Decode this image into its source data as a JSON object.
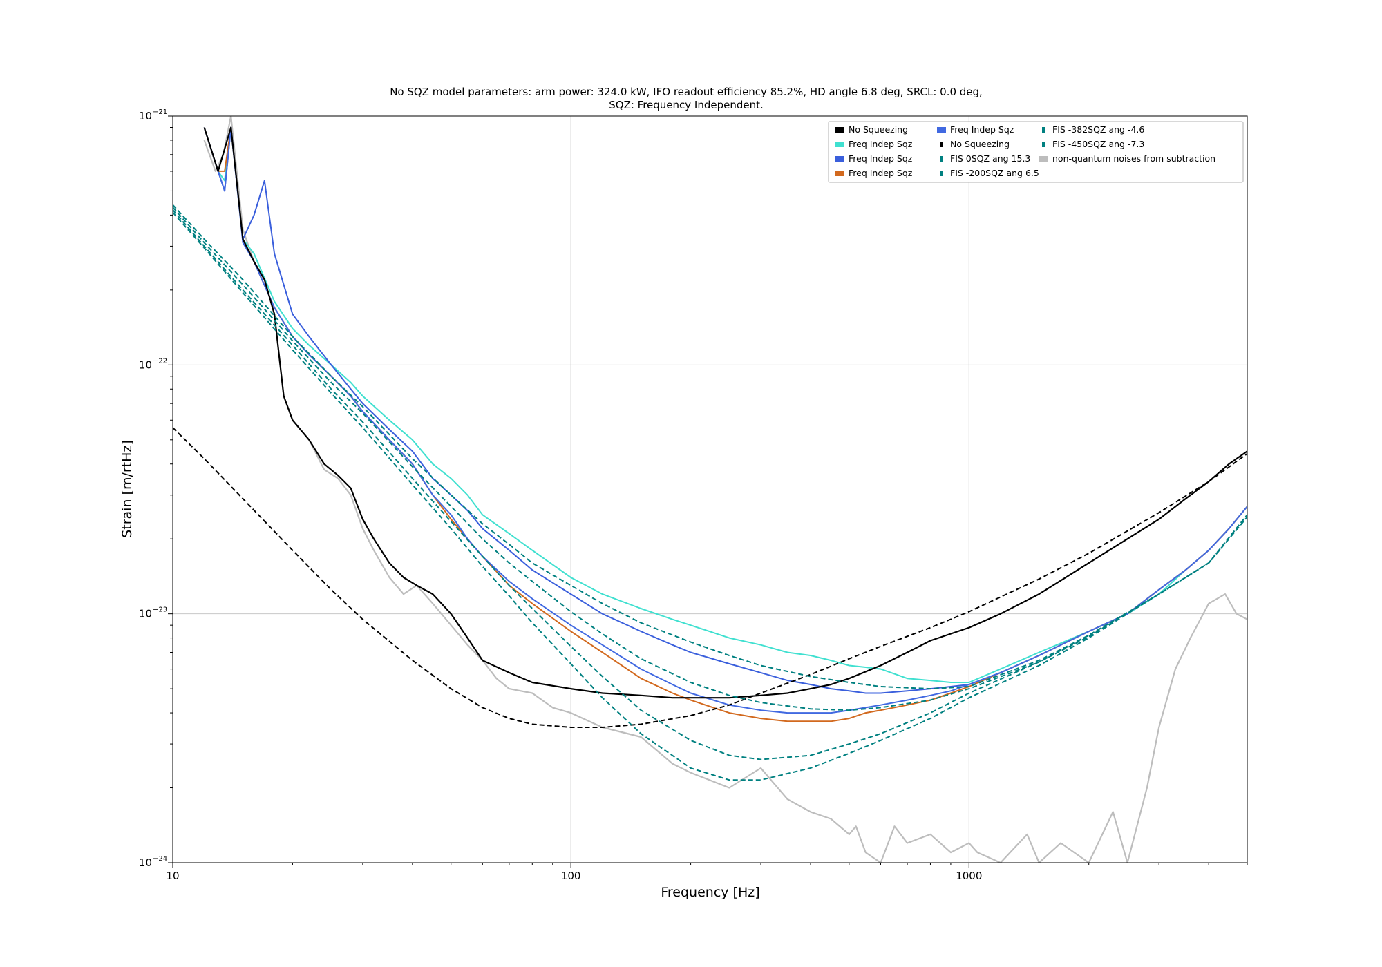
{
  "chart_data": {
    "type": "line",
    "title": "No SQZ model parameters: arm power: 324.0 kW, IFO readout efficiency 85.2%, HD angle 6.8 deg, SRCL: 0.0 deg,",
    "subtitle": "SQZ: Frequency Independent.",
    "xlabel": "Frequency [Hz]",
    "ylabel": "Strain [m/rtHz]",
    "xscale": "log",
    "yscale": "log",
    "xlim": [
      10,
      5000
    ],
    "ylim": [
      1e-24,
      1e-21
    ],
    "grid": true,
    "legend_position": "top-right",
    "x_tick_labels": [
      {
        "value": 10,
        "label": "10"
      },
      {
        "value": 100,
        "label": "100"
      },
      {
        "value": 1000,
        "label": "1000"
      }
    ],
    "y_tick_labels": [
      {
        "value": 1e-24,
        "base": "10",
        "exp": "−24"
      },
      {
        "value": 1e-23,
        "base": "10",
        "exp": "−23"
      },
      {
        "value": 1e-22,
        "base": "10",
        "exp": "−22"
      },
      {
        "value": 1e-21,
        "base": "10",
        "exp": "−21"
      }
    ],
    "legend_columns": [
      [
        {
          "label": "No Squeezing",
          "color": "#000000",
          "marker": "wide"
        },
        {
          "label": "Freq Indep Sqz",
          "color": "#40e0d0",
          "marker": "wide"
        },
        {
          "label": "Freq Indep Sqz",
          "color": "#3a5fdc",
          "marker": "wide"
        },
        {
          "label": "Freq Indep Sqz",
          "color": "#d2691e",
          "marker": "wide"
        }
      ],
      [
        {
          "label": "Freq Indep Sqz",
          "color": "#4169e1",
          "marker": "wide"
        },
        {
          "label": "No Squeezing",
          "color": "#000000",
          "marker": "narrow"
        },
        {
          "label": "FIS 0SQZ ang 15.3",
          "color": "#008080",
          "marker": "narrow"
        },
        {
          "label": "FIS -200SQZ ang 6.5",
          "color": "#008080",
          "marker": "narrow"
        }
      ],
      [
        {
          "label": "FIS -382SQZ ang -4.6",
          "color": "#008080",
          "marker": "narrow"
        },
        {
          "label": "FIS -450SQZ ang -7.3",
          "color": "#008080",
          "marker": "narrow"
        },
        {
          "label": "non-quantum noises from subtraction",
          "color": "#bdbdbd",
          "marker": "wide"
        }
      ]
    ],
    "series": [
      {
        "name": "non-quantum noises from subtraction",
        "color": "#bdbdbd",
        "style": "solid",
        "width": 2.2,
        "x": [
          12,
          12.8,
          13.4,
          14,
          15,
          16,
          17,
          18,
          19,
          20,
          22,
          24,
          26,
          28,
          30,
          32,
          35,
          38,
          41,
          45,
          50,
          55,
          60,
          65,
          70,
          80,
          90,
          100,
          120,
          150,
          180,
          200,
          250,
          300,
          350,
          400,
          450,
          500,
          520,
          550,
          600,
          650,
          700,
          800,
          900,
          1000,
          1050,
          1200,
          1400,
          1500,
          1700,
          2000,
          2300,
          2500,
          2800,
          3000,
          3300,
          3600,
          4000,
          4400,
          4700,
          5000
        ],
        "y": [
          8e-22,
          6e-22,
          7e-22,
          1e-21,
          3.5e-22,
          2.6e-22,
          2.2e-22,
          1.6e-22,
          7.5e-23,
          6e-23,
          5e-23,
          3.8e-23,
          3.5e-23,
          3e-23,
          2.2e-23,
          1.8e-23,
          1.4e-23,
          1.2e-23,
          1.3e-23,
          1.1e-23,
          9e-24,
          7.5e-24,
          6.5e-24,
          5.5e-24,
          5e-24,
          4.8e-24,
          4.2e-24,
          4e-24,
          3.5e-24,
          3.2e-24,
          2.5e-24,
          2.3e-24,
          2e-24,
          2.4e-24,
          1.8e-24,
          1.6e-24,
          1.5e-24,
          1.3e-24,
          1.4e-24,
          1.1e-24,
          1e-24,
          1.4e-24,
          1.2e-24,
          1.3e-24,
          1.1e-24,
          1.2e-24,
          1.1e-24,
          1e-24,
          1.3e-24,
          1e-24,
          1.2e-24,
          1e-24,
          1.6e-24,
          1e-24,
          2e-24,
          3.5e-24,
          6e-24,
          8e-24,
          1.1e-23,
          1.2e-23,
          1e-23,
          9.5e-24
        ]
      },
      {
        "name": "Freq Indep Sqz",
        "color": "#40e0d0",
        "style": "solid",
        "width": 2,
        "x": [
          12,
          13,
          13.5,
          14,
          15,
          16,
          18,
          20,
          22,
          25,
          28,
          30,
          35,
          40,
          45,
          50,
          55,
          60,
          70,
          80,
          100,
          120,
          150,
          180,
          200,
          250,
          300,
          350,
          400,
          450,
          500,
          550,
          600,
          700,
          800,
          900,
          1000,
          1200,
          1500,
          2000,
          2500,
          3000,
          3500,
          4000,
          4500,
          5000
        ],
        "y": [
          9e-22,
          6e-22,
          5.5e-22,
          9e-22,
          3.2e-22,
          2.8e-22,
          1.8e-22,
          1.4e-22,
          1.2e-22,
          1e-22,
          8.5e-23,
          7.5e-23,
          6e-23,
          5e-23,
          4e-23,
          3.5e-23,
          3e-23,
          2.5e-23,
          2.1e-23,
          1.8e-23,
          1.4e-23,
          1.2e-23,
          1.05e-23,
          9.5e-24,
          9e-24,
          8e-24,
          7.5e-24,
          7e-24,
          6.8e-24,
          6.5e-24,
          6.2e-24,
          6.1e-24,
          6e-24,
          5.5e-24,
          5.4e-24,
          5.3e-24,
          5.3e-24,
          6e-24,
          7e-24,
          8.5e-24,
          1e-23,
          1.2e-23,
          1.5e-23,
          1.8e-23,
          2.2e-23,
          2.7e-23
        ]
      },
      {
        "name": "Freq Indep Sqz",
        "color": "#3a5fdc",
        "style": "solid",
        "width": 2,
        "x": [
          12,
          13,
          13.5,
          14,
          15,
          16,
          17,
          18,
          20,
          22,
          25,
          28,
          30,
          35,
          40,
          45,
          50,
          55,
          60,
          70,
          80,
          100,
          120,
          150,
          180,
          200,
          250,
          300,
          350,
          400,
          450,
          500,
          550,
          600,
          700,
          800,
          900,
          1000,
          1200,
          1500,
          2000,
          2500,
          3000,
          3500,
          4000,
          4500,
          5000
        ],
        "y": [
          9e-22,
          6e-22,
          5e-22,
          9e-22,
          3.2e-22,
          4e-22,
          5.5e-22,
          2.8e-22,
          1.6e-22,
          1.3e-22,
          1e-22,
          8e-23,
          7e-23,
          5.5e-23,
          4.5e-23,
          3.5e-23,
          3e-23,
          2.6e-23,
          2.2e-23,
          1.8e-23,
          1.5e-23,
          1.2e-23,
          1e-23,
          8.5e-24,
          7.5e-24,
          7e-24,
          6.3e-24,
          5.8e-24,
          5.4e-24,
          5.2e-24,
          5e-24,
          4.9e-24,
          4.8e-24,
          4.8e-24,
          4.9e-24,
          5e-24,
          5.1e-24,
          5.2e-24,
          5.8e-24,
          6.8e-24,
          8.5e-24,
          1e-23,
          1.25e-23,
          1.5e-23,
          1.8e-23,
          2.2e-23,
          2.7e-23
        ]
      },
      {
        "name": "Freq Indep Sqz",
        "color": "#d2691e",
        "style": "solid",
        "width": 2,
        "x": [
          12,
          13,
          13.5,
          14,
          15,
          16,
          18,
          20,
          22,
          25,
          28,
          30,
          35,
          40,
          45,
          50,
          55,
          60,
          70,
          80,
          100,
          120,
          150,
          180,
          200,
          250,
          300,
          350,
          400,
          450,
          500,
          550,
          600,
          700,
          800,
          900,
          1000,
          1200,
          1500,
          2000,
          2500,
          3000,
          3500,
          4000,
          4500,
          5000
        ],
        "y": [
          9e-22,
          6e-22,
          6e-22,
          9e-22,
          3.2e-22,
          2.6e-22,
          1.7e-22,
          1.3e-22,
          1.1e-22,
          9e-23,
          7.5e-23,
          6.5e-23,
          5e-23,
          4e-23,
          3e-23,
          2.4e-23,
          2e-23,
          1.7e-23,
          1.3e-23,
          1.1e-23,
          8.5e-24,
          7e-24,
          5.5e-24,
          4.8e-24,
          4.5e-24,
          4e-24,
          3.8e-24,
          3.7e-24,
          3.7e-24,
          3.7e-24,
          3.8e-24,
          4e-24,
          4.1e-24,
          4.3e-24,
          4.5e-24,
          4.8e-24,
          5.1e-24,
          5.8e-24,
          6.8e-24,
          8.5e-24,
          1e-23,
          1.25e-23,
          1.5e-23,
          1.8e-23,
          2.2e-23,
          2.7e-23
        ]
      },
      {
        "name": "Freq Indep Sqz",
        "color": "#4169e1",
        "style": "solid",
        "width": 2,
        "x": [
          12,
          13,
          13.5,
          14,
          15,
          16,
          18,
          20,
          22,
          25,
          28,
          30,
          35,
          40,
          45,
          50,
          55,
          60,
          70,
          80,
          100,
          120,
          150,
          180,
          200,
          250,
          300,
          350,
          400,
          450,
          500,
          550,
          600,
          700,
          800,
          900,
          1000,
          1200,
          1500,
          2000,
          2500,
          3000,
          3500,
          4000,
          4500,
          5000
        ],
        "y": [
          9e-22,
          6e-22,
          5e-22,
          9e-22,
          3.1e-22,
          2.6e-22,
          1.7e-22,
          1.3e-22,
          1.1e-22,
          9e-23,
          7.5e-23,
          6.5e-23,
          5e-23,
          4e-23,
          3e-23,
          2.5e-23,
          2e-23,
          1.7e-23,
          1.35e-23,
          1.15e-23,
          9e-24,
          7.5e-24,
          6e-24,
          5.2e-24,
          4.8e-24,
          4.3e-24,
          4.1e-24,
          4e-24,
          4e-24,
          4e-24,
          4.1e-24,
          4.2e-24,
          4.3e-24,
          4.5e-24,
          4.7e-24,
          4.9e-24,
          5.2e-24,
          5.8e-24,
          6.8e-24,
          8.5e-24,
          1e-23,
          1.25e-23,
          1.5e-23,
          1.8e-23,
          2.2e-23,
          2.7e-23
        ]
      },
      {
        "name": "No Squeezing",
        "color": "#000000",
        "style": "solid",
        "width": 2.2,
        "x": [
          12,
          13,
          14,
          15,
          16,
          17,
          18,
          19,
          20,
          22,
          24,
          26,
          28,
          30,
          32,
          35,
          38,
          41,
          45,
          50,
          55,
          60,
          70,
          80,
          100,
          120,
          150,
          180,
          200,
          250,
          300,
          350,
          400,
          450,
          500,
          600,
          700,
          800,
          1000,
          1200,
          1500,
          2000,
          2500,
          3000,
          3500,
          4000,
          4500,
          5000
        ],
        "y": [
          9e-22,
          6e-22,
          9e-22,
          3.2e-22,
          2.6e-22,
          2.2e-22,
          1.6e-22,
          7.5e-23,
          6e-23,
          5e-23,
          4e-23,
          3.6e-23,
          3.2e-23,
          2.4e-23,
          2e-23,
          1.6e-23,
          1.4e-23,
          1.3e-23,
          1.2e-23,
          1e-23,
          8e-24,
          6.5e-24,
          5.8e-24,
          5.3e-24,
          5e-24,
          4.8e-24,
          4.7e-24,
          4.6e-24,
          4.6e-24,
          4.6e-24,
          4.7e-24,
          4.8e-24,
          5e-24,
          5.2e-24,
          5.5e-24,
          6.2e-24,
          7e-24,
          7.8e-24,
          8.8e-24,
          1e-23,
          1.2e-23,
          1.6e-23,
          2e-23,
          2.4e-23,
          2.9e-23,
          3.4e-23,
          4e-23,
          4.5e-23
        ]
      },
      {
        "name": "No Squeezing",
        "color": "#000000",
        "style": "dashed",
        "width": 2,
        "x": [
          10,
          12,
          15,
          20,
          25,
          30,
          40,
          50,
          60,
          70,
          80,
          100,
          120,
          150,
          200,
          250,
          300,
          400,
          500,
          600,
          800,
          1000,
          1500,
          2000,
          3000,
          4000,
          5000
        ],
        "y": [
          5.6e-23,
          4.2e-23,
          2.9e-23,
          1.8e-23,
          1.25e-23,
          9.5e-24,
          6.5e-24,
          5e-24,
          4.2e-24,
          3.8e-24,
          3.6e-24,
          3.5e-24,
          3.5e-24,
          3.6e-24,
          3.9e-24,
          4.3e-24,
          4.8e-24,
          5.7e-24,
          6.6e-24,
          7.4e-24,
          8.8e-24,
          1.02e-23,
          1.38e-23,
          1.75e-23,
          2.55e-23,
          3.4e-23,
          4.4e-23
        ]
      },
      {
        "name": "FIS 0SQZ ang 15.3",
        "color": "#008080",
        "style": "dashed",
        "width": 2,
        "x": [
          10,
          12,
          15,
          20,
          25,
          30,
          40,
          50,
          60,
          70,
          80,
          100,
          120,
          150,
          200,
          250,
          300,
          400,
          500,
          600,
          800,
          1000,
          1500,
          2000,
          3000,
          4000,
          5000
        ],
        "y": [
          4.4e-22,
          3.2e-22,
          2.2e-22,
          1.3e-22,
          9e-23,
          6.8e-23,
          4.2e-23,
          3e-23,
          2.3e-23,
          1.9e-23,
          1.6e-23,
          1.3e-23,
          1.1e-23,
          9.2e-24,
          7.7e-24,
          6.8e-24,
          6.2e-24,
          5.6e-24,
          5.3e-24,
          5.1e-24,
          5e-24,
          5.1e-24,
          6.5e-24,
          8.2e-24,
          1.2e-23,
          1.6e-23,
          2.5e-23
        ]
      },
      {
        "name": "FIS -200SQZ ang 6.5",
        "color": "#008080",
        "style": "dashed",
        "width": 2,
        "x": [
          10,
          12,
          15,
          20,
          25,
          30,
          40,
          50,
          60,
          70,
          80,
          100,
          120,
          150,
          200,
          250,
          300,
          400,
          500,
          600,
          800,
          1000,
          1500,
          2000,
          3000,
          4000,
          5000
        ],
        "y": [
          4.3e-22,
          3.1e-22,
          2.1e-22,
          1.25e-22,
          8.5e-23,
          6.4e-23,
          3.9e-23,
          2.7e-23,
          2e-23,
          1.6e-23,
          1.35e-23,
          1.02e-23,
          8.3e-24,
          6.6e-24,
          5.3e-24,
          4.7e-24,
          4.4e-24,
          4.15e-24,
          4.1e-24,
          4.2e-24,
          4.5e-24,
          5e-24,
          6.4e-24,
          8.2e-24,
          1.2e-23,
          1.6e-23,
          2.5e-23
        ]
      },
      {
        "name": "FIS -382SQZ ang -4.6",
        "color": "#008080",
        "style": "dashed",
        "width": 2,
        "x": [
          10,
          12,
          15,
          20,
          25,
          30,
          40,
          50,
          60,
          70,
          80,
          100,
          120,
          150,
          200,
          250,
          300,
          400,
          500,
          600,
          800,
          1000,
          1500,
          2000,
          3000,
          4000,
          5000
        ],
        "y": [
          4.2e-22,
          3e-22,
          2e-22,
          1.2e-22,
          8e-23,
          5.9e-23,
          3.5e-23,
          2.35e-23,
          1.7e-23,
          1.3e-23,
          1.05e-23,
          7.4e-24,
          5.6e-24,
          4.1e-24,
          3.1e-24,
          2.7e-24,
          2.6e-24,
          2.7e-24,
          3e-24,
          3.3e-24,
          4e-24,
          4.8e-24,
          6.4e-24,
          8.1e-24,
          1.2e-23,
          1.6e-23,
          2.45e-23
        ]
      },
      {
        "name": "FIS -450SQZ ang -7.3",
        "color": "#008080",
        "style": "dashed",
        "width": 2,
        "x": [
          10,
          12,
          15,
          20,
          25,
          30,
          40,
          50,
          60,
          70,
          80,
          100,
          120,
          150,
          200,
          250,
          300,
          400,
          500,
          600,
          800,
          1000,
          1500,
          2000,
          3000,
          4000,
          5000
        ],
        "y": [
          4.1e-22,
          2.95e-22,
          1.95e-22,
          1.15e-22,
          7.7e-23,
          5.6e-23,
          3.3e-23,
          2.2e-23,
          1.55e-23,
          1.18e-23,
          9.2e-24,
          6.3e-24,
          4.6e-24,
          3.3e-24,
          2.4e-24,
          2.15e-24,
          2.15e-24,
          2.4e-24,
          2.75e-24,
          3.1e-24,
          3.8e-24,
          4.6e-24,
          6.2e-24,
          8e-24,
          1.2e-23,
          1.6e-23,
          2.45e-23
        ]
      }
    ]
  }
}
